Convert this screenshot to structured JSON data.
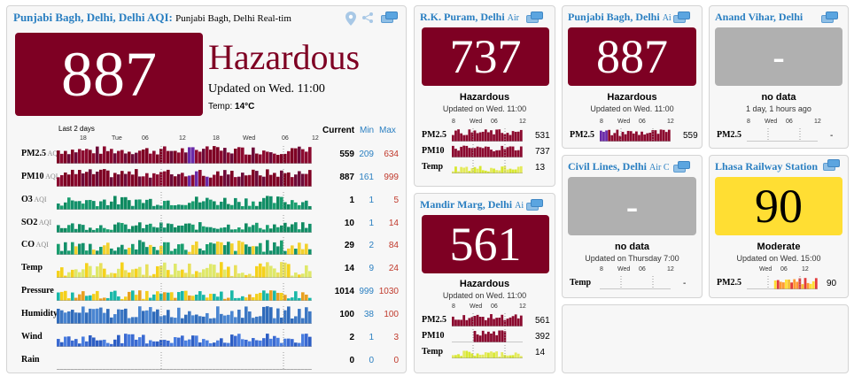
{
  "main": {
    "title": "Punjabi Bagh, Delhi, Delhi AQI:",
    "subtitle": "Punjabi Bagh, Delhi Real-tim",
    "aqi": "887",
    "status": "Hazardous",
    "updated": "Updated on Wed. 11:00",
    "temp_label": "Temp:",
    "temp_value": "14",
    "temp_unit": "°C",
    "last_label": "Last 2 days",
    "axis_ticks": [
      "18",
      "Tue",
      "06",
      "12",
      "18",
      "Wed",
      "06",
      "12"
    ],
    "col_current": "Current",
    "col_min": "Min",
    "col_max": "Max",
    "rows": [
      {
        "label": "PM2.5",
        "unit": "AQI",
        "current": "559",
        "min": "209",
        "max": "634"
      },
      {
        "label": "PM10",
        "unit": "AQI",
        "current": "887",
        "min": "161",
        "max": "999"
      },
      {
        "label": "O3",
        "unit": "AQI",
        "current": "1",
        "min": "1",
        "max": "5"
      },
      {
        "label": "SO2",
        "unit": "AQI",
        "current": "10",
        "min": "1",
        "max": "14"
      },
      {
        "label": "CO",
        "unit": "AQI",
        "current": "29",
        "min": "2",
        "max": "84"
      },
      {
        "label": "Temp",
        "unit": "",
        "current": "14",
        "min": "9",
        "max": "24"
      },
      {
        "label": "Pressure",
        "unit": "",
        "current": "1014",
        "min": "999",
        "max": "1030"
      },
      {
        "label": "Humidity",
        "unit": "",
        "current": "100",
        "min": "38",
        "max": "100"
      },
      {
        "label": "Wind",
        "unit": "",
        "current": "2",
        "min": "1",
        "max": "3"
      },
      {
        "label": "Rain",
        "unit": "",
        "current": "0",
        "min": "0",
        "max": "0"
      }
    ]
  },
  "rk": {
    "title": "R.K. Puram, Delhi",
    "suffix": "Air",
    "aqi": "737",
    "status": "Hazardous",
    "updated": "Updated on Wed. 11:00",
    "ticks": [
      "8",
      "Wed",
      "06",
      "12"
    ],
    "rows": [
      {
        "label": "PM2.5",
        "value": "531"
      },
      {
        "label": "PM10",
        "value": "737"
      },
      {
        "label": "Temp",
        "value": "13"
      }
    ]
  },
  "mandir": {
    "title": "Mandir Marg, Delhi",
    "suffix": "Ai",
    "aqi": "561",
    "status": "Hazardous",
    "updated": "Updated on Wed. 11:00",
    "ticks": [
      "8",
      "Wed",
      "06",
      "12"
    ],
    "rows": [
      {
        "label": "PM2.5",
        "value": "561"
      },
      {
        "label": "PM10",
        "value": "392"
      },
      {
        "label": "Temp",
        "value": "14"
      }
    ]
  },
  "pb2": {
    "title": "Punjabi Bagh, Delhi",
    "suffix": "Ai",
    "aqi": "887",
    "status": "Hazardous",
    "updated": "Updated on Wed. 11:00",
    "ticks": [
      "8",
      "Wed",
      "06",
      "12"
    ],
    "rows": [
      {
        "label": "PM2.5",
        "value": "559"
      }
    ]
  },
  "civil": {
    "title": "Civil Lines, Delhi",
    "suffix": "Air C",
    "aqi": "-",
    "status": "no data",
    "updated": "Updated on Thursday 7:00",
    "ticks": [
      "8",
      "Wed",
      "06",
      "12"
    ],
    "rows": [
      {
        "label": "Temp",
        "value": "-"
      }
    ]
  },
  "anand": {
    "title": "Anand Vihar, Delhi",
    "suffix": "",
    "aqi": "-",
    "status": "no data",
    "updated": "1 day, 1 hours ago",
    "ticks": [
      "8",
      "Wed",
      "06",
      "12"
    ],
    "rows": [
      {
        "label": "PM2.5",
        "value": "-"
      }
    ]
  },
  "lhasa": {
    "title": "Lhasa Railway Station",
    "suffix": "",
    "aqi": "90",
    "status": "Moderate",
    "updated": "Updated on Wed. 15:00",
    "ticks": [
      "Wed",
      "06",
      "12"
    ],
    "rows": [
      {
        "label": "PM2.5",
        "value": "90"
      }
    ]
  },
  "colors": {
    "hazardous": "#7e0023",
    "moderate": "#ffde33",
    "title_blue": "#2a7fc1"
  }
}
